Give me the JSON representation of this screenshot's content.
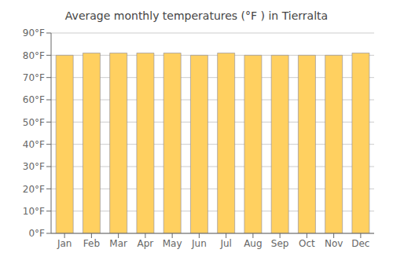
{
  "chart_data": {
    "type": "bar",
    "title": "Average monthly temperatures (°F ) in Tierralta",
    "categories": [
      "Jan",
      "Feb",
      "Mar",
      "Apr",
      "May",
      "Jun",
      "Jul",
      "Aug",
      "Sep",
      "Oct",
      "Nov",
      "Dec"
    ],
    "values": [
      80,
      81,
      81,
      81,
      81,
      80,
      81,
      80,
      80,
      80,
      80,
      81
    ],
    "color": "#FFD060",
    "ylim": [
      0,
      90
    ],
    "yticks": [
      {
        "value": 0,
        "label": "0°F"
      },
      {
        "value": 10,
        "label": "10°F"
      },
      {
        "value": 20,
        "label": "20°F"
      },
      {
        "value": 30,
        "label": "30°F"
      },
      {
        "value": 40,
        "label": "40°F"
      },
      {
        "value": 50,
        "label": "50°F"
      },
      {
        "value": 60,
        "label": "60°F"
      },
      {
        "value": 70,
        "label": "70°F"
      },
      {
        "value": 80,
        "label": "80°F"
      },
      {
        "value": 90,
        "label": "90°F"
      }
    ],
    "grid": true
  }
}
